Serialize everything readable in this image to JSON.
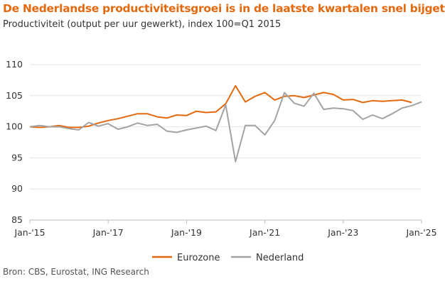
{
  "title": "De Nederlandse productiviteitsgroei is in de laatste kwartalen snel bijgetrokken",
  "subtitle": "Productiviteit (output per uur gewerkt), index 100=Q1 2015",
  "source": "Bron: CBS, Eurostat, ING Research",
  "chart_data": {
    "type": "line",
    "title": "De Nederlandse productiviteitsgroei is in de laatste kwartalen snel bijgetrokken",
    "subtitle": "Productiviteit (output per uur gewerkt), index 100=Q1 2015",
    "frequency": "quarterly",
    "x_start": "Q1 2015",
    "xlim": [
      "Jan-'15",
      "Jan-'25"
    ],
    "x_ticks": [
      "Jan-'15",
      "Jan-'17",
      "Jan-'19",
      "Jan-'21",
      "Jan-'23",
      "Jan-'25"
    ],
    "ylim": [
      85,
      110
    ],
    "y_ticks": [
      85,
      90,
      95,
      100,
      105,
      110
    ],
    "grid": "horizontal",
    "legend": "bottom",
    "series": [
      {
        "name": "Eurozone",
        "color": "#E3690F",
        "values": [
          100,
          99.9,
          100,
          100.2,
          99.9,
          99.9,
          100.1,
          100.6,
          101,
          101.3,
          101.7,
          102.1,
          102.1,
          101.6,
          101.4,
          101.9,
          101.8,
          102.5,
          102.3,
          102.4,
          103.7,
          106.6,
          104,
          104.9,
          105.5,
          104.3,
          104.9,
          105,
          104.7,
          105.1,
          105.5,
          105.2,
          104.3,
          104.4,
          103.9,
          104.2,
          104.1,
          104.2,
          104.3,
          103.9
        ]
      },
      {
        "name": "Nederland",
        "color": "#A3A3A3",
        "values": [
          100,
          100.2,
          100,
          100,
          99.7,
          99.5,
          100.7,
          100.1,
          100.5,
          99.6,
          100,
          100.6,
          100.2,
          100.4,
          99.3,
          99.1,
          99.5,
          99.8,
          100.1,
          99.4,
          103.5,
          94.4,
          100.2,
          100.2,
          98.7,
          101,
          105.5,
          103.8,
          103.3,
          105.4,
          102.8,
          103,
          102.9,
          102.6,
          101.2,
          101.9,
          101.3,
          102.1,
          103,
          103.4,
          104
        ]
      }
    ]
  }
}
